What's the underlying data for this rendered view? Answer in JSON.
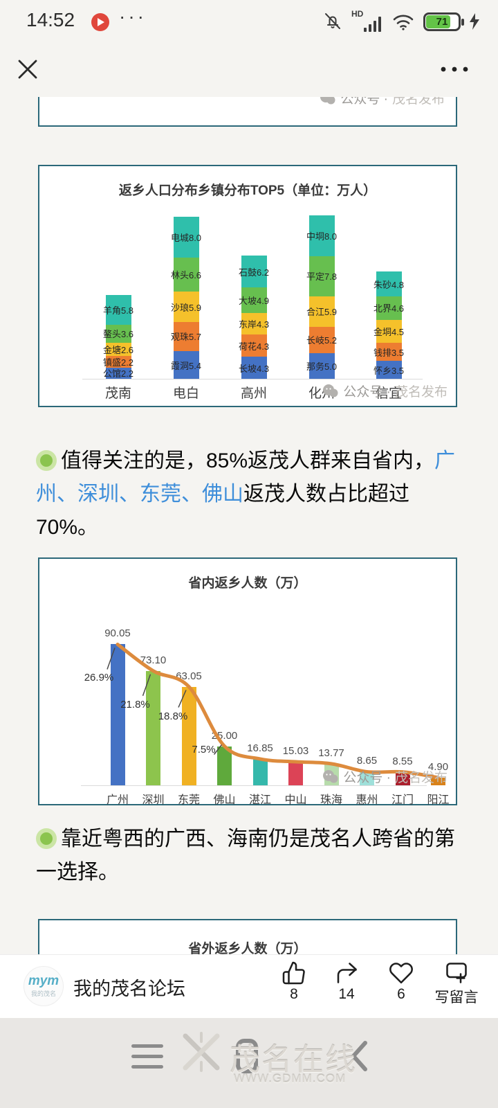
{
  "status_bar": {
    "time": "14:52",
    "hd_label": "HD",
    "battery_percent": "71"
  },
  "watermark": {
    "part1": "公众号 ·",
    "part2": "茂名发布"
  },
  "town_chart": {
    "type": "stacked-bar",
    "title": "返乡人口分布乡镇分布TOP5（单位：万人）",
    "categories": [
      "茂南",
      "电白",
      "高州",
      "化州",
      "信宜"
    ],
    "colors_bottom_to_top": [
      "#4472c4",
      "#ed7d31",
      "#f5c12b",
      "#67bf4f",
      "#2fbfab"
    ],
    "stacks_bottom_to_top": [
      [
        {
          "n": "公馆",
          "v": "2.2"
        },
        {
          "n": "镇盛",
          "v": "2.2"
        },
        {
          "n": "金塘",
          "v": "2.6"
        },
        {
          "n": "鳌头",
          "v": "3.6"
        },
        {
          "n": "羊角",
          "v": "5.8"
        }
      ],
      [
        {
          "n": "霞洞",
          "v": "5.4"
        },
        {
          "n": "观珠",
          "v": "5.7"
        },
        {
          "n": "沙琅",
          "v": "5.9"
        },
        {
          "n": "林头",
          "v": "6.6"
        },
        {
          "n": "电城",
          "v": "8.0"
        }
      ],
      [
        {
          "n": "长坡",
          "v": "4.3"
        },
        {
          "n": "荷花",
          "v": "4.3"
        },
        {
          "n": "东岸",
          "v": "4.3"
        },
        {
          "n": "大坡",
          "v": "4.9"
        },
        {
          "n": "石鼓",
          "v": "6.2"
        }
      ],
      [
        {
          "n": "那务",
          "v": "5.0"
        },
        {
          "n": "长岐",
          "v": "5.2"
        },
        {
          "n": "合江",
          "v": "5.9"
        },
        {
          "n": "平定",
          "v": "7.8"
        },
        {
          "n": "中垌",
          "v": "8.0"
        }
      ],
      [
        {
          "n": "怀乡",
          "v": "3.5"
        },
        {
          "n": "钱排",
          "v": "3.5"
        },
        {
          "n": "金垌",
          "v": "4.5"
        },
        {
          "n": "北界",
          "v": "4.6"
        },
        {
          "n": "朱砂",
          "v": "4.8"
        }
      ]
    ]
  },
  "paragraph1": {
    "part1": "值得关注的是，85%返茂人群来自省内，",
    "cities": "广州、深圳、东莞、佛山",
    "part2": "返茂人数占比超过70%。"
  },
  "province_chart": {
    "type": "bar-line",
    "title": "省内返乡人数（万）",
    "categories": [
      "广州",
      "深圳",
      "东莞",
      "佛山",
      "湛江",
      "中山",
      "珠海",
      "惠州",
      "江门",
      "阳江"
    ],
    "values": [
      "90.05",
      "73.10",
      "63.05",
      "25.00",
      "16.85",
      "15.03",
      "13.77",
      "8.65",
      "8.55",
      "4.90"
    ],
    "pct_labels": [
      "26.9%",
      "21.8%",
      "18.8%",
      "7.5%"
    ],
    "bar_colors": [
      "#4472c4",
      "#8dc44d",
      "#f0b123",
      "#5fa93c",
      "#35b8ab",
      "#dc4356",
      "#b7dcab",
      "#9fe0da",
      "#ab1f2d",
      "#d9821a"
    ],
    "line_color": "#dd8b3d"
  },
  "paragraph2": {
    "text": "靠近粤西的广西、海南仍是茂名人跨省的第一选择。"
  },
  "outside_chart": {
    "title": "省外返乡人数（万）"
  },
  "action_bar": {
    "logo_main": "mym",
    "logo_sub": "我的茂名",
    "source_name": "我的茂名论坛",
    "like_count": "8",
    "share_count": "14",
    "favorite_count": "6",
    "comment_label": "写留言"
  },
  "android_nav": {
    "site_name": "茂名在线",
    "site_url": "WWW.GDMM.COM"
  }
}
